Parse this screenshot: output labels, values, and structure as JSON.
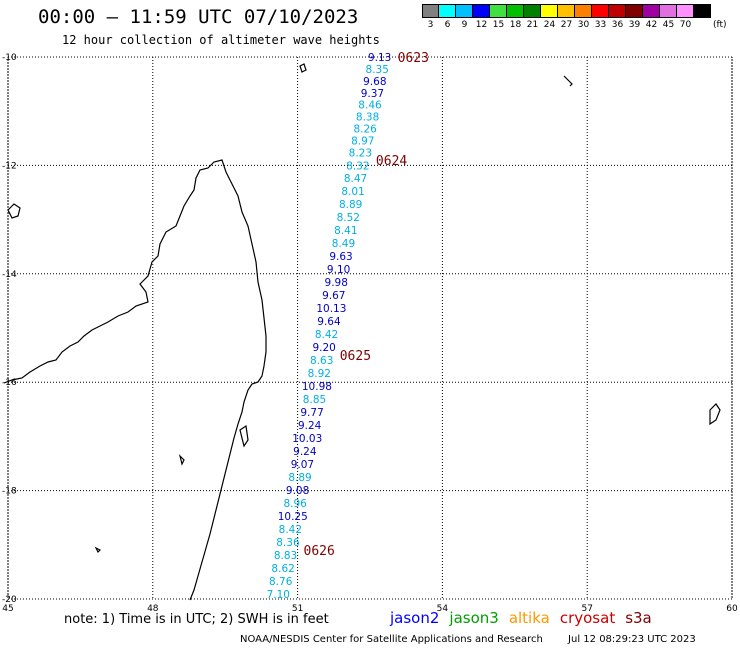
{
  "title": "00:00 – 11:59 UTC 07/10/2023",
  "subtitle": "12 hour collection of altimeter wave heights",
  "colorbar": {
    "unit": "(ft)",
    "bins": [
      {
        "label": "3",
        "color": "#808080"
      },
      {
        "label": "6",
        "color": "#00ffff"
      },
      {
        "label": "9",
        "color": "#00c0ff"
      },
      {
        "label": "12",
        "color": "#0000ff"
      },
      {
        "label": "15",
        "color": "#40e040"
      },
      {
        "label": "18",
        "color": "#00c000"
      },
      {
        "label": "21",
        "color": "#008000"
      },
      {
        "label": "24",
        "color": "#ffff00"
      },
      {
        "label": "27",
        "color": "#ffc000"
      },
      {
        "label": "30",
        "color": "#ff8000"
      },
      {
        "label": "33",
        "color": "#ff0000"
      },
      {
        "label": "36",
        "color": "#c00000"
      },
      {
        "label": "39",
        "color": "#800000"
      },
      {
        "label": "42",
        "color": "#a000a0"
      },
      {
        "label": "45",
        "color": "#e070e0"
      },
      {
        "label": "70",
        "color": "#ff90ff"
      },
      {
        "label": "",
        "color": "#000000"
      }
    ]
  },
  "axes": {
    "lat_labels": [
      "-10",
      "-12",
      "-14",
      "-16",
      "-18",
      "-20"
    ],
    "lon_labels": [
      "45",
      "48",
      "51",
      "54",
      "57",
      "60"
    ],
    "grid": "dotted"
  },
  "track": {
    "times": [
      {
        "label": "0623",
        "lat": -10.0
      },
      {
        "label": "0624",
        "lat": -11.9
      },
      {
        "label": "0625",
        "lat": -15.5
      },
      {
        "label": "0626",
        "lat": -19.1
      }
    ],
    "points": [
      {
        "value": "9.13",
        "sat": "jason2",
        "lon": 52.7,
        "lat": -10.0
      },
      {
        "value": "8.35",
        "sat": "light",
        "lon": 52.65,
        "lat": -10.22
      },
      {
        "value": "9.68",
        "sat": "jason2",
        "lon": 52.6,
        "lat": -10.44
      },
      {
        "value": "9.37",
        "sat": "jason2",
        "lon": 52.55,
        "lat": -10.66
      },
      {
        "value": "8.46",
        "sat": "light",
        "lon": 52.5,
        "lat": -10.88
      },
      {
        "value": "8.38",
        "sat": "light",
        "lon": 52.45,
        "lat": -11.1
      },
      {
        "value": "8.26",
        "sat": "light",
        "lon": 52.4,
        "lat": -11.32
      },
      {
        "value": "8.97",
        "sat": "light",
        "lon": 52.35,
        "lat": -11.54
      },
      {
        "value": "8.23",
        "sat": "light",
        "lon": 52.3,
        "lat": -11.76
      },
      {
        "value": "8.32",
        "sat": "light",
        "lon": 52.25,
        "lat": -12.0
      },
      {
        "value": "8.47",
        "sat": "light",
        "lon": 52.2,
        "lat": -12.23
      },
      {
        "value": "8.01",
        "sat": "light",
        "lon": 52.15,
        "lat": -12.47
      },
      {
        "value": "8.89",
        "sat": "light",
        "lon": 52.1,
        "lat": -12.71
      },
      {
        "value": "8.52",
        "sat": "light",
        "lon": 52.05,
        "lat": -12.95
      },
      {
        "value": "8.41",
        "sat": "light",
        "lon": 52.0,
        "lat": -13.19
      },
      {
        "value": "8.49",
        "sat": "light",
        "lon": 51.95,
        "lat": -13.43
      },
      {
        "value": "9.63",
        "sat": "jason2",
        "lon": 51.9,
        "lat": -13.67
      },
      {
        "value": "9.10",
        "sat": "jason2",
        "lon": 51.85,
        "lat": -13.91
      },
      {
        "value": "9.98",
        "sat": "jason2",
        "lon": 51.8,
        "lat": -14.15
      },
      {
        "value": "9.67",
        "sat": "jason2",
        "lon": 51.75,
        "lat": -14.39
      },
      {
        "value": "10.13",
        "sat": "jason2",
        "lon": 51.7,
        "lat": -14.63
      },
      {
        "value": "9.64",
        "sat": "jason2",
        "lon": 51.65,
        "lat": -14.87
      },
      {
        "value": "8.42",
        "sat": "light",
        "lon": 51.6,
        "lat": -15.11
      },
      {
        "value": "9.20",
        "sat": "jason2",
        "lon": 51.55,
        "lat": -15.35
      },
      {
        "value": "8.63",
        "sat": "light",
        "lon": 51.5,
        "lat": -15.59
      },
      {
        "value": "8.92",
        "sat": "light",
        "lon": 51.45,
        "lat": -15.83
      },
      {
        "value": "10.98",
        "sat": "jason2",
        "lon": 51.4,
        "lat": -16.07
      },
      {
        "value": "8.85",
        "sat": "light",
        "lon": 51.35,
        "lat": -16.31
      },
      {
        "value": "9.77",
        "sat": "jason2",
        "lon": 51.3,
        "lat": -16.55
      },
      {
        "value": "9.24",
        "sat": "jason2",
        "lon": 51.25,
        "lat": -16.79
      },
      {
        "value": "10.03",
        "sat": "jason2",
        "lon": 51.2,
        "lat": -17.03
      },
      {
        "value": "9.24",
        "sat": "jason2",
        "lon": 51.15,
        "lat": -17.27
      },
      {
        "value": "9.07",
        "sat": "jason2",
        "lon": 51.1,
        "lat": -17.51
      },
      {
        "value": "8.89",
        "sat": "light",
        "lon": 51.05,
        "lat": -17.75
      },
      {
        "value": "9.08",
        "sat": "jason2",
        "lon": 51.0,
        "lat": -17.99
      },
      {
        "value": "8.96",
        "sat": "light",
        "lon": 50.95,
        "lat": -18.23
      },
      {
        "value": "10.25",
        "sat": "jason2",
        "lon": 50.9,
        "lat": -18.47
      },
      {
        "value": "8.42",
        "sat": "light",
        "lon": 50.85,
        "lat": -18.71
      },
      {
        "value": "8.36",
        "sat": "light",
        "lon": 50.8,
        "lat": -18.95
      },
      {
        "value": "8.83",
        "sat": "light",
        "lon": 50.75,
        "lat": -19.19
      },
      {
        "value": "8.62",
        "sat": "light",
        "lon": 50.7,
        "lat": -19.43
      },
      {
        "value": "8.76",
        "sat": "light",
        "lon": 50.65,
        "lat": -19.67
      },
      {
        "value": "7.10",
        "sat": "light",
        "lon": 50.6,
        "lat": -19.91
      }
    ],
    "colors": {
      "jason2": "#0000c8",
      "light": "#00b0e0",
      "time": "#800000"
    }
  },
  "note": "note: 1) Time is in UTC; 2) SWH is in feet",
  "legend": [
    {
      "name": "jason2",
      "color": "#0000ff"
    },
    {
      "name": "jason3",
      "color": "#00a000"
    },
    {
      "name": "altika",
      "color": "#ff9900"
    },
    {
      "name": "cryosat",
      "color": "#cc0000"
    },
    {
      "name": "s3a",
      "color": "#800000"
    }
  ],
  "footer": {
    "credit": "NOAA/NESDIS Center for Satellite Applications and Research",
    "timestamp": "Jul 12 08:29:23 UTC 2023"
  }
}
